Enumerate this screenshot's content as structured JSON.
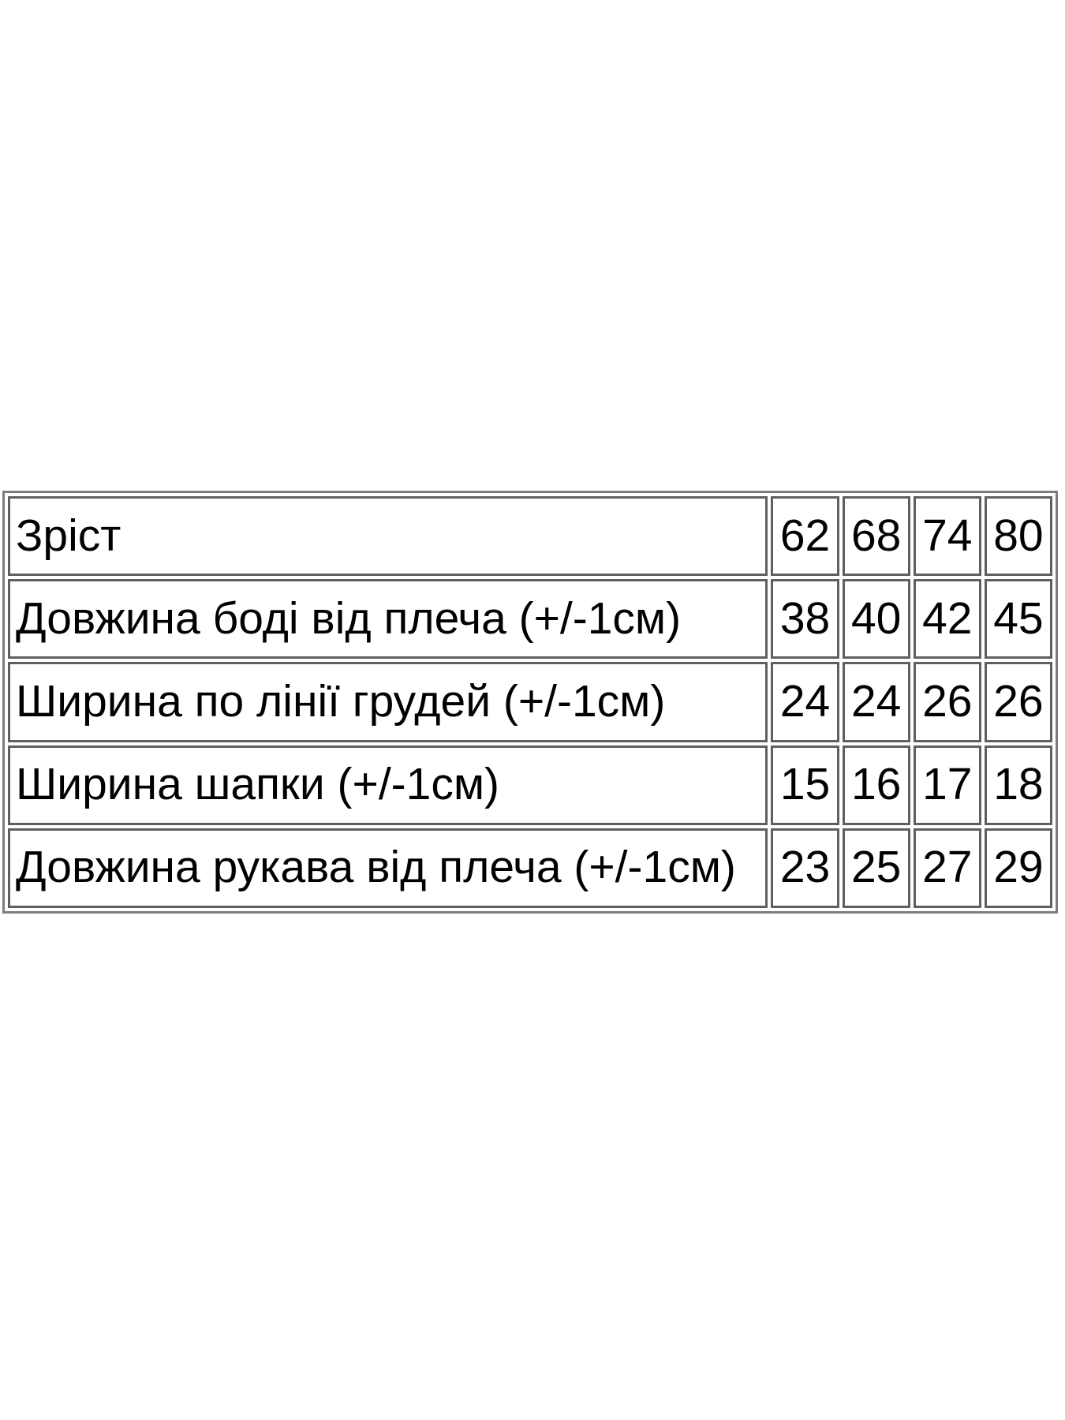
{
  "chart_data": {
    "type": "table",
    "title": "",
    "columns": [
      "Зріст",
      "62",
      "68",
      "74",
      "80"
    ],
    "rows": [
      {
        "label": "Зріст",
        "values": [
          "62",
          "68",
          "74",
          "80"
        ]
      },
      {
        "label": "Довжина боді від плеча (+/-1см)",
        "values": [
          "38",
          "40",
          "42",
          "45"
        ]
      },
      {
        "label": "Ширина по лінії грудей (+/-1см)",
        "values": [
          "24",
          "24",
          "26",
          "26"
        ]
      },
      {
        "label": "Ширина шапки (+/-1см)",
        "values": [
          "15",
          "16",
          "17",
          "18"
        ]
      },
      {
        "label": "Довжина рукава від плеча (+/-1см)",
        "values": [
          "23",
          "25",
          "27",
          "29"
        ]
      }
    ],
    "layout": {
      "grid": true,
      "border_color": "#5f5f5f",
      "outer_border_color": "#7d7d7d",
      "text_color": "#000000",
      "background": "#ffffff"
    }
  }
}
